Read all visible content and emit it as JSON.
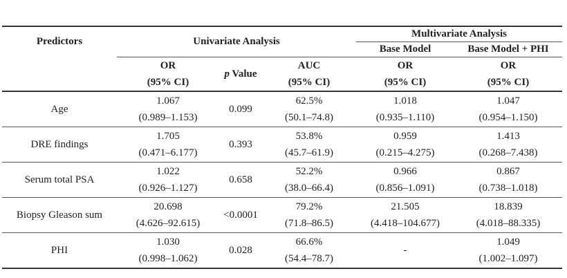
{
  "headers": {
    "predictors": "Predictors",
    "univariate": "Univariate Analysis",
    "multivariate": "Multivariate Analysis",
    "base_model": "Base Model",
    "base_model_phi": "Base Model + PHI",
    "or_line1": "OR",
    "or_line2": "(95% CI)",
    "p_italic": "p",
    "p_rest": " Value",
    "auc_line1": "AUC",
    "auc_line2": "(95% CI)"
  },
  "rows": [
    {
      "predictor": "Age",
      "uni_or": "1.067",
      "uni_or_ci": "(0.989–1.153)",
      "p": "0.099",
      "auc": "62.5%",
      "auc_ci": "(50.1–74.8)",
      "base_or": "1.018",
      "base_or_ci": "(0.935–1.110)",
      "phi_or": "1.047",
      "phi_or_ci": "(0.954–1.150)"
    },
    {
      "predictor": "DRE findings",
      "uni_or": "1.705",
      "uni_or_ci": "(0.471–6.177)",
      "p": "0.393",
      "auc": "53.8%",
      "auc_ci": "(45.7–61.9)",
      "base_or": "0.959",
      "base_or_ci": "(0.215–4.275)",
      "phi_or": "1.413",
      "phi_or_ci": "(0.268–7.438)"
    },
    {
      "predictor": "Serum total PSA",
      "uni_or": "1.022",
      "uni_or_ci": "(0.926–1.127)",
      "p": "0.658",
      "auc": "52.2%",
      "auc_ci": "(38.0–66.4)",
      "base_or": "0.966",
      "base_or_ci": "(0.856–1.091)",
      "phi_or": "0.867",
      "phi_or_ci": "(0.738–1.018)"
    },
    {
      "predictor": "Biopsy Gleason sum",
      "uni_or": "20.698",
      "uni_or_ci": "(4.626–92.615)",
      "p": "<0.0001",
      "auc": "79.2%",
      "auc_ci": "(71.8–86.5)",
      "base_or": "21.505",
      "base_or_ci": "(4.418–104.677)",
      "phi_or": "18.839",
      "phi_or_ci": "(4.018–88.335)"
    },
    {
      "predictor": "PHI",
      "uni_or": "1.030",
      "uni_or_ci": "(0.998–1.062)",
      "p": "0.028",
      "auc": "66.6%",
      "auc_ci": "(54.4–78.7)",
      "base_or": "-",
      "base_or_ci": "",
      "phi_or": "1.049",
      "phi_or_ci": "(1.002–1.097)"
    }
  ]
}
